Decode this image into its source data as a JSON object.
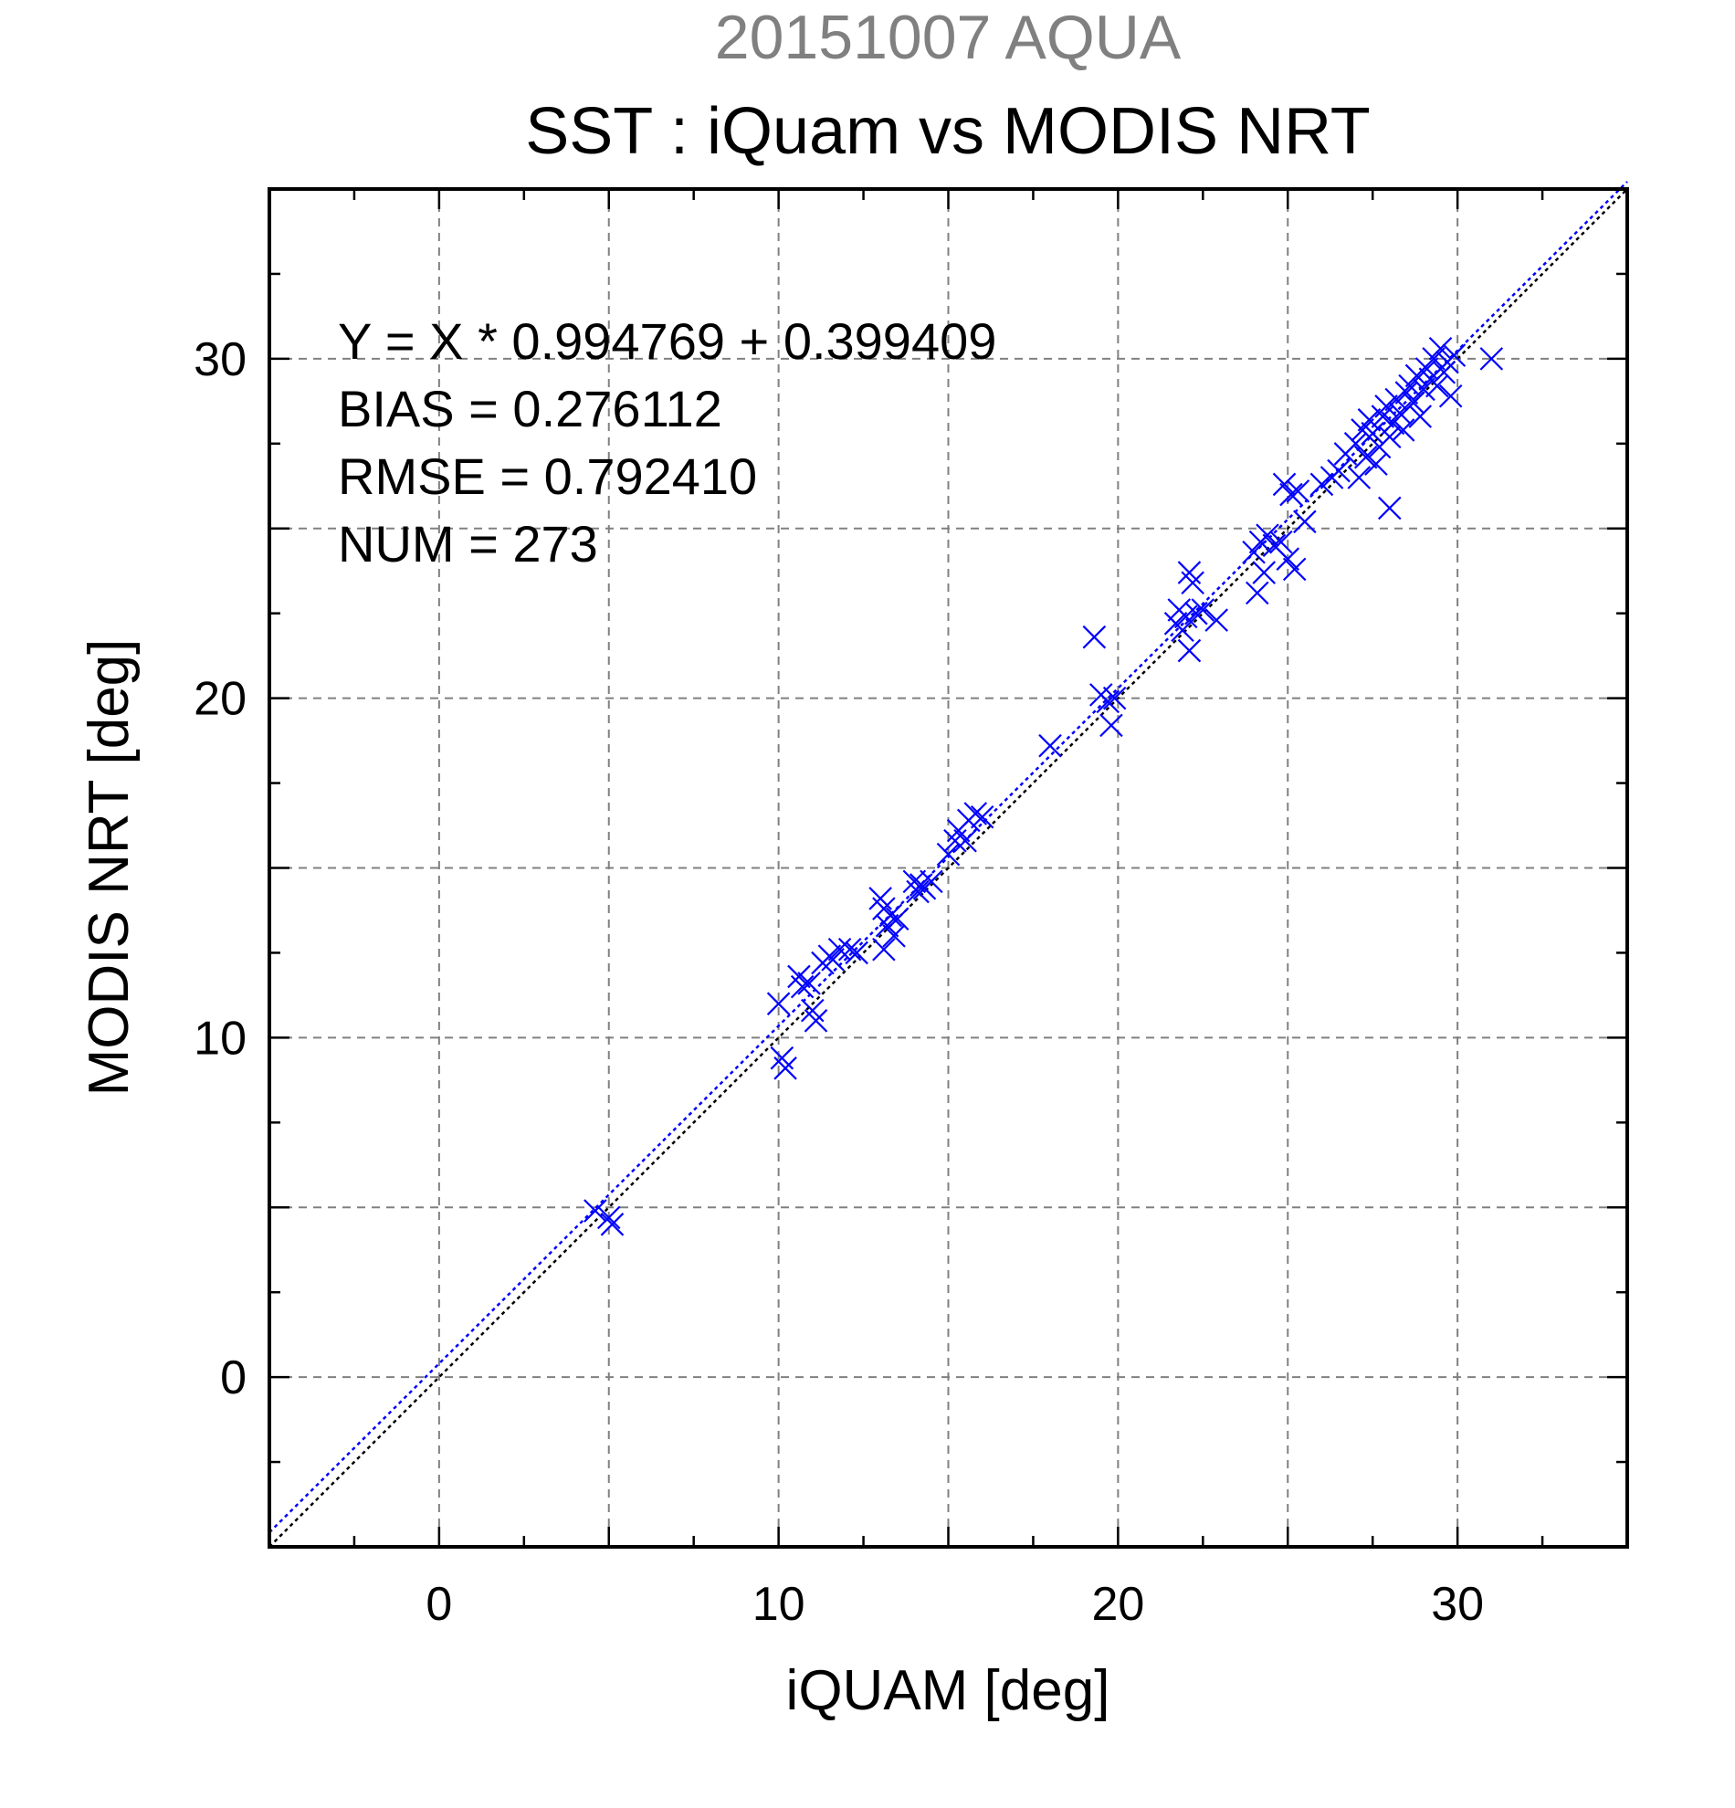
{
  "chart_data": {
    "type": "scatter",
    "title": "20151007 AQUA",
    "subtitle": "SST : iQuam vs MODIS NRT",
    "xlabel": "iQUAM [deg]",
    "ylabel": "MODIS NRT [deg]",
    "xlim": [
      -5,
      35
    ],
    "ylim": [
      -5,
      35
    ],
    "x_ticks": [
      0,
      10,
      20,
      30
    ],
    "y_ticks": [
      0,
      10,
      20,
      30
    ],
    "grid": true,
    "colors": {
      "points": "#0000ff",
      "fit_line": "#0000ff",
      "one_to_one_line": "#000000",
      "title": "#808080"
    },
    "stats": [
      "Y = X * 0.994769 + 0.399409",
      "BIAS = 0.276112",
      "RMSE = 0.792410",
      "NUM = 273"
    ],
    "fit": {
      "slope": 0.994769,
      "intercept": 0.399409
    },
    "series": [
      {
        "marker": "x",
        "points": [
          [
            4.6,
            4.9
          ],
          [
            5.0,
            4.7
          ],
          [
            5.1,
            4.5
          ],
          [
            10.0,
            11.0
          ],
          [
            10.1,
            9.4
          ],
          [
            10.2,
            9.1
          ],
          [
            10.6,
            11.8
          ],
          [
            10.7,
            11.5
          ],
          [
            10.9,
            11.6
          ],
          [
            11.0,
            10.8
          ],
          [
            11.1,
            10.5
          ],
          [
            11.3,
            12.2
          ],
          [
            11.5,
            12.4
          ],
          [
            11.6,
            12.3
          ],
          [
            11.8,
            12.6
          ],
          [
            12.1,
            12.6
          ],
          [
            12.3,
            12.5
          ],
          [
            13.0,
            14.1
          ],
          [
            13.1,
            13.8
          ],
          [
            13.1,
            12.6
          ],
          [
            13.2,
            13.3
          ],
          [
            13.3,
            13.6
          ],
          [
            13.4,
            13.0
          ],
          [
            13.5,
            13.5
          ],
          [
            14.0,
            14.6
          ],
          [
            14.1,
            14.3
          ],
          [
            14.2,
            14.5
          ],
          [
            14.3,
            14.4
          ],
          [
            14.5,
            14.6
          ],
          [
            15.0,
            15.4
          ],
          [
            15.2,
            15.8
          ],
          [
            15.3,
            16.1
          ],
          [
            15.5,
            15.8
          ],
          [
            15.6,
            16.4
          ],
          [
            15.8,
            16.6
          ],
          [
            16.0,
            16.5
          ],
          [
            18.0,
            18.6
          ],
          [
            19.3,
            21.8
          ],
          [
            19.5,
            20.1
          ],
          [
            19.7,
            19.9
          ],
          [
            19.8,
            19.2
          ],
          [
            19.9,
            20.0
          ],
          [
            21.7,
            22.2
          ],
          [
            21.8,
            22.6
          ],
          [
            21.9,
            22.0
          ],
          [
            22.0,
            22.4
          ],
          [
            22.1,
            21.4
          ],
          [
            22.1,
            23.7
          ],
          [
            22.2,
            23.4
          ],
          [
            22.3,
            22.5
          ],
          [
            22.5,
            22.6
          ],
          [
            22.9,
            22.3
          ],
          [
            24.0,
            24.3
          ],
          [
            24.1,
            23.1
          ],
          [
            24.2,
            24.6
          ],
          [
            24.3,
            23.7
          ],
          [
            24.4,
            24.8
          ],
          [
            24.6,
            24.5
          ],
          [
            24.8,
            24.6
          ],
          [
            24.9,
            26.3
          ],
          [
            25.0,
            24.1
          ],
          [
            25.1,
            26.0
          ],
          [
            25.2,
            23.8
          ],
          [
            25.3,
            26.1
          ],
          [
            25.5,
            25.2
          ],
          [
            26.0,
            26.3
          ],
          [
            26.3,
            26.5
          ],
          [
            26.5,
            26.7
          ],
          [
            26.7,
            27.2
          ],
          [
            27.0,
            27.5
          ],
          [
            27.1,
            26.5
          ],
          [
            27.2,
            27.9
          ],
          [
            27.3,
            27.1
          ],
          [
            27.4,
            28.2
          ],
          [
            27.5,
            27.8
          ],
          [
            27.6,
            26.9
          ],
          [
            27.7,
            27.4
          ],
          [
            27.8,
            28.3
          ],
          [
            27.9,
            28.6
          ],
          [
            28.0,
            25.6
          ],
          [
            28.0,
            27.7
          ],
          [
            28.1,
            28.1
          ],
          [
            28.2,
            28.8
          ],
          [
            28.3,
            28.4
          ],
          [
            28.4,
            27.9
          ],
          [
            28.5,
            29.0
          ],
          [
            28.6,
            29.2
          ],
          [
            28.7,
            28.7
          ],
          [
            28.8,
            29.5
          ],
          [
            28.9,
            28.3
          ],
          [
            29.0,
            29.1
          ],
          [
            29.1,
            29.7
          ],
          [
            29.2,
            29.4
          ],
          [
            29.3,
            30.0
          ],
          [
            29.4,
            29.2
          ],
          [
            29.5,
            30.3
          ],
          [
            29.6,
            29.6
          ],
          [
            29.7,
            29.9
          ],
          [
            29.8,
            28.9
          ],
          [
            29.9,
            30.1
          ],
          [
            31.0,
            30.0
          ]
        ]
      }
    ]
  }
}
